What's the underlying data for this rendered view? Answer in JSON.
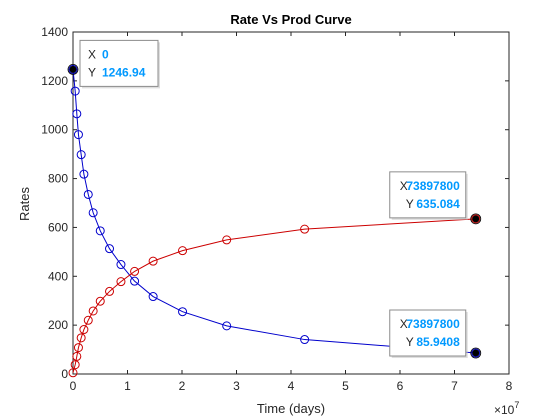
{
  "chart_data": {
    "type": "line",
    "title": "Rate Vs Prod Curve",
    "xlabel": "Time (days)",
    "ylabel": "Rates",
    "x_exponent_label": "×10",
    "x_exponent_power": "7",
    "xlim": [
      0,
      8
    ],
    "ylim": [
      0,
      1400
    ],
    "xticks": [
      0,
      1,
      2,
      3,
      4,
      5,
      6,
      7,
      8
    ],
    "yticks": [
      0,
      200,
      400,
      600,
      800,
      1000,
      1200,
      1400
    ],
    "xtick_labels": [
      "0",
      "1",
      "2",
      "3",
      "4",
      "5",
      "6",
      "7",
      "8"
    ],
    "ytick_labels": [
      "0",
      "200",
      "400",
      "600",
      "800",
      "1000",
      "1200",
      "1400"
    ],
    "grid": false,
    "series": [
      {
        "color": "#0000cc",
        "marker": "circle",
        "x": [
          0,
          0.04,
          0.07,
          0.1,
          0.15,
          0.2,
          0.28,
          0.37,
          0.5,
          0.67,
          0.88,
          1.13,
          1.47,
          2.01,
          2.82,
          4.25,
          7.39
        ],
        "y": [
          1246.94,
          1158,
          1065,
          980,
          898,
          818,
          735,
          660,
          586,
          513,
          448,
          380,
          317,
          255,
          197,
          141,
          85.9408
        ]
      },
      {
        "color": "#cc0000",
        "marker": "circle",
        "x": [
          0,
          0.04,
          0.07,
          0.1,
          0.15,
          0.2,
          0.28,
          0.37,
          0.5,
          0.67,
          0.88,
          1.13,
          1.47,
          2.01,
          2.82,
          4.25,
          7.39
        ],
        "y": [
          5,
          38,
          72,
          108,
          148,
          182,
          220,
          258,
          298,
          338,
          378,
          420,
          462,
          505,
          549,
          593,
          635.084
        ]
      }
    ],
    "datatips": [
      {
        "x_key": "X",
        "y_key": "Y",
        "x_value": "0",
        "y_value": "1246.94",
        "point_x": 0,
        "point_y": 1246.94,
        "placement": "right"
      },
      {
        "x_key": "X",
        "y_key": "Y",
        "x_value": "73897800",
        "y_value": "635.084",
        "point_x": 7.39,
        "point_y": 635.084,
        "placement": "left-above"
      },
      {
        "x_key": "X",
        "y_key": "Y",
        "x_value": "73897800",
        "y_value": "85.9408",
        "point_x": 7.39,
        "point_y": 85.9408,
        "placement": "left-above"
      }
    ],
    "datatip_value_color": "#0099ff"
  }
}
